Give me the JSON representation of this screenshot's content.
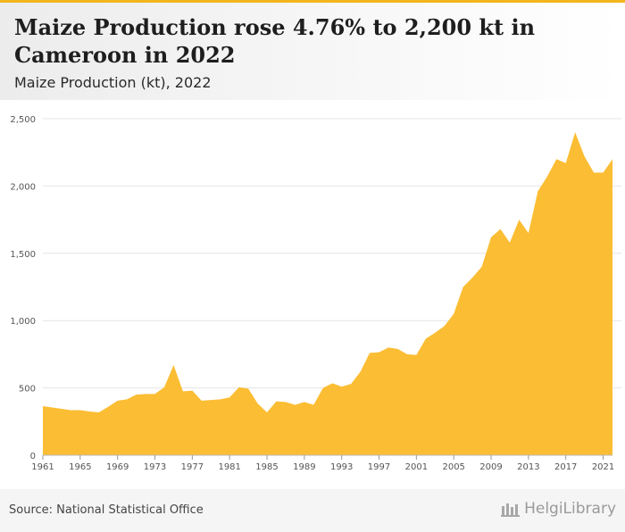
{
  "header": {
    "title": "Maize Production rose 4.76% to 2,200 kt in Cameroon in 2022",
    "subtitle": "Maize Production (kt), 2022"
  },
  "footer": {
    "source": "Source: National Statistical Office",
    "logo_text": "HelgiLibrary"
  },
  "colors": {
    "fill": "#fbbd33",
    "grid": "#e4e4e4",
    "axis_text": "#555555"
  },
  "chart_data": {
    "type": "area",
    "x": [
      1961,
      1962,
      1963,
      1964,
      1965,
      1966,
      1967,
      1968,
      1969,
      1970,
      1971,
      1972,
      1973,
      1974,
      1975,
      1976,
      1977,
      1978,
      1979,
      1980,
      1981,
      1982,
      1983,
      1984,
      1985,
      1986,
      1987,
      1988,
      1989,
      1990,
      1991,
      1992,
      1993,
      1994,
      1995,
      1996,
      1997,
      1998,
      1999,
      2000,
      2001,
      2002,
      2003,
      2004,
      2005,
      2006,
      2007,
      2008,
      2009,
      2010,
      2011,
      2012,
      2013,
      2014,
      2015,
      2016,
      2017,
      2018,
      2019,
      2020,
      2021,
      2022
    ],
    "series": [
      {
        "values": [
          365,
          355,
          345,
          335,
          335,
          325,
          318,
          360,
          405,
          415,
          450,
          455,
          455,
          505,
          670,
          475,
          480,
          405,
          410,
          415,
          430,
          505,
          495,
          385,
          318,
          400,
          395,
          375,
          395,
          375,
          500,
          535,
          510,
          530,
          620,
          760,
          765,
          800,
          790,
          750,
          745,
          865,
          910,
          960,
          1050,
          1250,
          1320,
          1400,
          1620,
          1680,
          1580,
          1750,
          1650,
          1960,
          2070,
          2200,
          2170,
          2400,
          2220,
          2100,
          2100,
          2200
        ]
      }
    ],
    "xticks": [
      "1961",
      "1965",
      "1969",
      "1973",
      "1977",
      "1981",
      "1985",
      "1989",
      "1993",
      "1997",
      "2001",
      "2005",
      "2009",
      "2013",
      "2017",
      "2021"
    ],
    "yticks": [
      "0",
      "500",
      "1,000",
      "1,500",
      "2,000",
      "2,500"
    ],
    "ylim": [
      0,
      2500
    ],
    "xlim": [
      1961,
      2022
    ],
    "grid": true
  }
}
